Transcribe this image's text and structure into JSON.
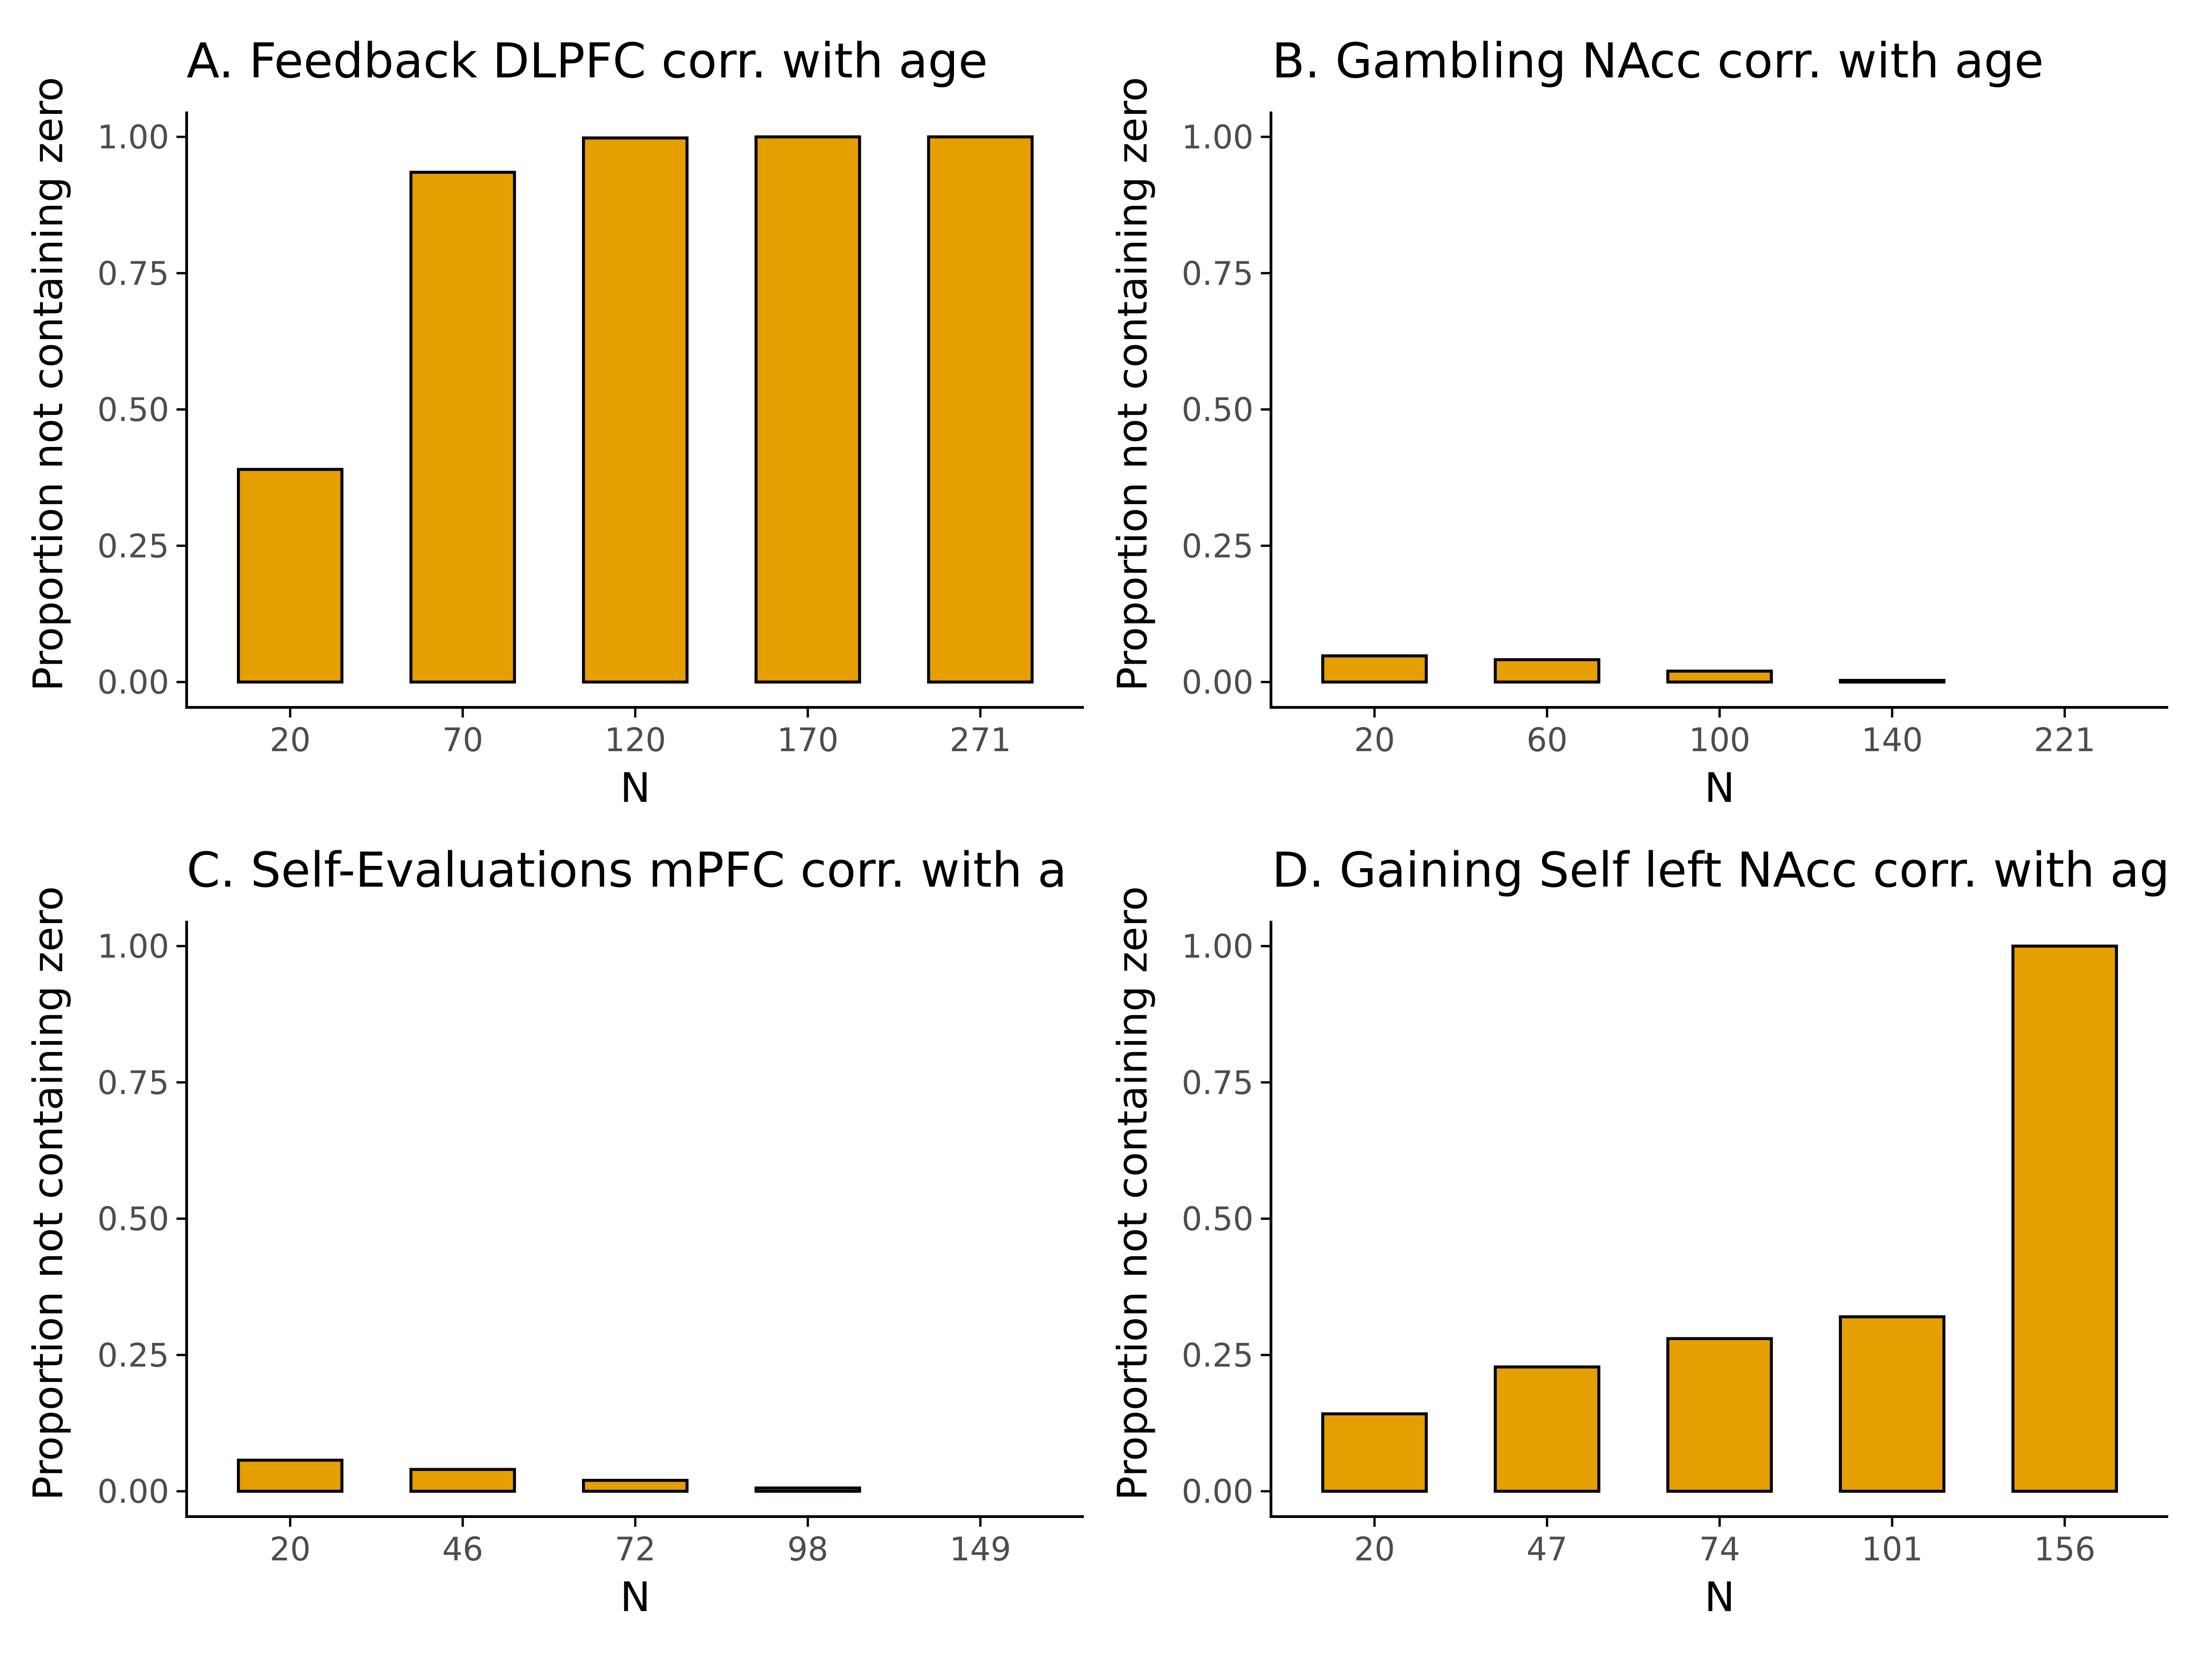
{
  "colors": {
    "bar_fill": "#E69F00",
    "bar_stroke": "#000000"
  },
  "chart_data": [
    {
      "type": "bar",
      "title": "A. Feedback DLPFC corr. with age",
      "xlabel": "N",
      "ylabel": "Proportion not containing zero",
      "categories": [
        "20",
        "70",
        "120",
        "170",
        "271"
      ],
      "values": [
        0.39,
        0.935,
        0.998,
        1.0,
        1.0
      ],
      "ylim": [
        0,
        1.05
      ],
      "yticks": [
        0.0,
        0.25,
        0.5,
        0.75,
        1.0
      ],
      "ytick_labels": [
        "0.00",
        "0.25",
        "0.50",
        "0.75",
        "1.00"
      ],
      "grid": false
    },
    {
      "type": "bar",
      "title": "B. Gambling NAcc corr. with age",
      "xlabel": "N",
      "ylabel": "Proportion not containing zero",
      "categories": [
        "20",
        "60",
        "100",
        "140",
        "221"
      ],
      "values": [
        0.048,
        0.041,
        0.02,
        0.003,
        0.0
      ],
      "ylim": [
        0,
        1.05
      ],
      "yticks": [
        0.0,
        0.25,
        0.5,
        0.75,
        1.0
      ],
      "ytick_labels": [
        "0.00",
        "0.25",
        "0.50",
        "0.75",
        "1.00"
      ],
      "grid": false
    },
    {
      "type": "bar",
      "title": "C. Self-Evaluations mPFC corr. with a",
      "xlabel": "N",
      "ylabel": "Proportion not containing zero",
      "categories": [
        "20",
        "46",
        "72",
        "98",
        "149"
      ],
      "values": [
        0.057,
        0.04,
        0.02,
        0.006,
        0.0
      ],
      "ylim": [
        0,
        1.05
      ],
      "yticks": [
        0.0,
        0.25,
        0.5,
        0.75,
        1.0
      ],
      "ytick_labels": [
        "0.00",
        "0.25",
        "0.50",
        "0.75",
        "1.00"
      ],
      "grid": false
    },
    {
      "type": "bar",
      "title": "D. Gaining Self left NAcc corr. with ag",
      "xlabel": "N",
      "ylabel": "Proportion not containing zero",
      "categories": [
        "20",
        "47",
        "74",
        "101",
        "156"
      ],
      "values": [
        0.142,
        0.228,
        0.28,
        0.32,
        1.0
      ],
      "ylim": [
        0,
        1.05
      ],
      "yticks": [
        0.0,
        0.25,
        0.5,
        0.75,
        1.0
      ],
      "ytick_labels": [
        "0.00",
        "0.25",
        "0.50",
        "0.75",
        "1.00"
      ],
      "grid": false
    }
  ]
}
